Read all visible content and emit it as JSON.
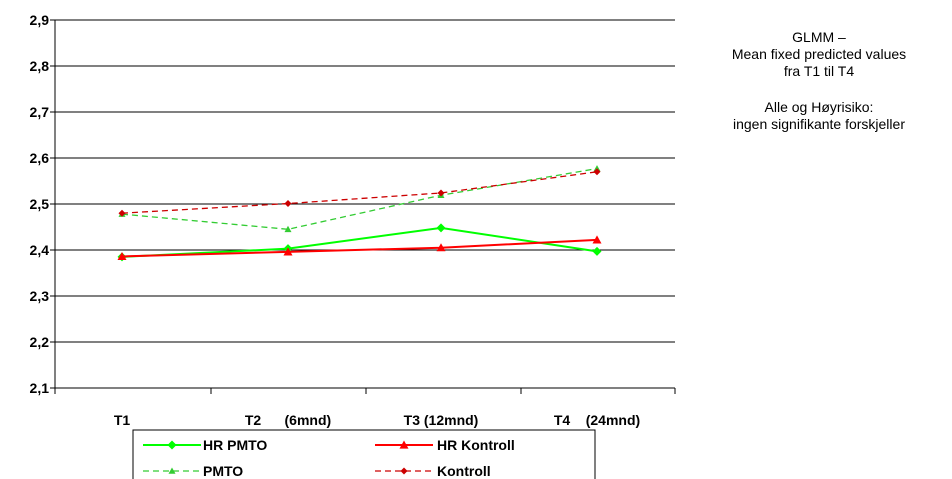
{
  "chart_data": {
    "type": "line",
    "x": [
      "T1",
      "T2      (6mnd)",
      "T3 (12mnd)",
      "T4    (24mnd)"
    ],
    "ylim": [
      2.1,
      2.9
    ],
    "yticks": [
      "2,9",
      "2,8",
      "2,7",
      "2,6",
      "2,5",
      "2,4",
      "2,3",
      "2,2",
      "2,1"
    ],
    "grid": true,
    "legend_position": "bottom",
    "series": [
      {
        "name": "HR PMTO",
        "values": [
          2.385,
          2.403,
          2.448,
          2.397
        ],
        "color": "#00ff00",
        "dash": "solid",
        "marker": "diamond"
      },
      {
        "name": "PMTO",
        "values": [
          2.478,
          2.445,
          2.519,
          2.577
        ],
        "color": "#33cc33",
        "dash": "dashed",
        "marker": "triangle"
      },
      {
        "name": "HR Kontroll",
        "values": [
          2.386,
          2.396,
          2.405,
          2.422
        ],
        "color": "#ff0000",
        "dash": "solid",
        "marker": "triangle"
      },
      {
        "name": "Kontroll",
        "values": [
          2.48,
          2.501,
          2.524,
          2.57
        ],
        "color": "#cc0000",
        "dash": "dashed",
        "marker": "diamond"
      }
    ]
  },
  "annotation": {
    "line1": "GLMM –",
    "line2": "Mean fixed predicted values",
    "line3": "fra T1 til T4",
    "line4": "Alle og Høyrisiko:",
    "line5": "ingen signifikante forskjeller"
  }
}
